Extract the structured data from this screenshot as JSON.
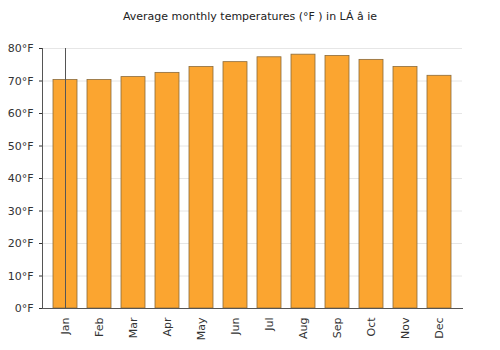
{
  "chart_data": {
    "type": "bar",
    "title": "Average monthly temperatures (°F ) in LÁ â ie",
    "categories": [
      "Jan",
      "Feb",
      "Mar",
      "Apr",
      "May",
      "Jun",
      "Jul",
      "Aug",
      "Sep",
      "Oct",
      "Nov",
      "Dec"
    ],
    "values": [
      70.3,
      70.3,
      71.2,
      72.5,
      74.3,
      75.8,
      77.3,
      78.1,
      77.7,
      76.5,
      74.3,
      71.6
    ],
    "color": "#fba530",
    "ylim": [
      0,
      80
    ],
    "yticks": [
      {
        "value": 0,
        "label": "0°F"
      },
      {
        "value": 10,
        "label": "10°F"
      },
      {
        "value": 20,
        "label": "20°F"
      },
      {
        "value": 30,
        "label": "30°F"
      },
      {
        "value": 40,
        "label": "40°F"
      },
      {
        "value": 50,
        "label": "50°F"
      },
      {
        "value": 60,
        "label": "60°F"
      },
      {
        "value": 70,
        "label": "70°F"
      },
      {
        "value": 80,
        "label": "80°F"
      }
    ],
    "grid": true
  }
}
